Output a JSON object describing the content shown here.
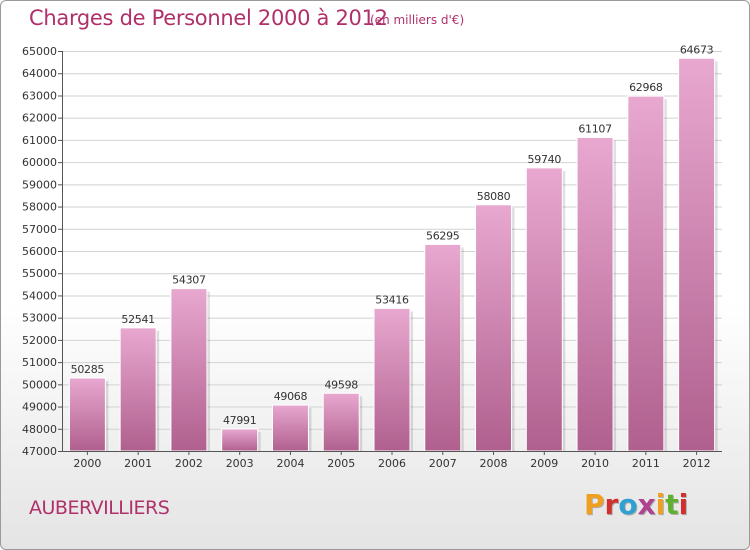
{
  "header": {
    "title": "Charges de Personnel 2000 à 2012",
    "unit": "(en milliers d'€)"
  },
  "footer": {
    "city": "AUBERVILLIERS",
    "logo_text": "Proxiti",
    "logo_colors": [
      "#f0a020",
      "#d03030",
      "#30a0d0",
      "#b04090",
      "#f0a020",
      "#60b030",
      "#d03030"
    ]
  },
  "colors": {
    "accent": "#b0306a",
    "bar_top": "#e8a8d0",
    "bar_bottom": "#b0608e",
    "grid": "#d2d2d2",
    "axis_text": "#333333"
  },
  "chart_data": {
    "type": "bar",
    "title": "Charges de Personnel 2000 à 2012",
    "subtitle": "(en milliers d'€)",
    "xlabel": "",
    "ylabel": "",
    "categories": [
      "2000",
      "2001",
      "2002",
      "2003",
      "2004",
      "2005",
      "2006",
      "2007",
      "2008",
      "2009",
      "2010",
      "2011",
      "2012"
    ],
    "values": [
      50285,
      52541,
      54307,
      47991,
      49068,
      49598,
      53416,
      56295,
      58080,
      59740,
      61107,
      62968,
      64673
    ],
    "data_labels": [
      "50285",
      "52541",
      "54307",
      "47991",
      "49068",
      "49598",
      "53416",
      "56295",
      "58080",
      "59740",
      "61107",
      "62968",
      "64673"
    ],
    "ylim": [
      47000,
      65000
    ],
    "yticks": [
      47000,
      48000,
      49000,
      50000,
      51000,
      52000,
      53000,
      54000,
      55000,
      56000,
      57000,
      58000,
      59000,
      60000,
      61000,
      62000,
      63000,
      64000,
      65000
    ],
    "ytick_labels": [
      "47000",
      "48000",
      "49000",
      "50000",
      "51000",
      "52000",
      "53000",
      "54000",
      "55000",
      "56000",
      "57000",
      "58000",
      "59000",
      "60000",
      "61000",
      "62000",
      "63000",
      "64000",
      "65000"
    ],
    "grid": true,
    "legend": "none"
  }
}
